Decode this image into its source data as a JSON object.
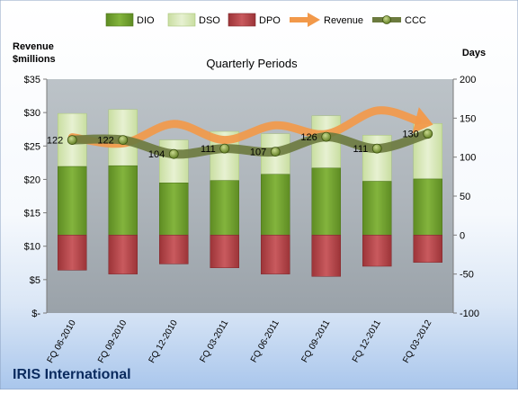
{
  "chart_data": {
    "type": "bar",
    "title": "Quarterly Periods",
    "company": "IRIS International",
    "left_axis_label_line1": "Revenue",
    "left_axis_label_line2": "$millions",
    "right_axis_label": "Days",
    "left_ylim": [
      0,
      35
    ],
    "right_ylim": [
      -100,
      200
    ],
    "left_ticks": [
      {
        "value": 0,
        "label": "$-"
      },
      {
        "value": 5,
        "label": "$5"
      },
      {
        "value": 10,
        "label": "$10"
      },
      {
        "value": 15,
        "label": "$15"
      },
      {
        "value": 20,
        "label": "$20"
      },
      {
        "value": 25,
        "label": "$25"
      },
      {
        "value": 30,
        "label": "$30"
      },
      {
        "value": 35,
        "label": "$35"
      }
    ],
    "right_ticks": [
      {
        "value": -100,
        "label": "-100"
      },
      {
        "value": -50,
        "label": "-50"
      },
      {
        "value": 0,
        "label": "0"
      },
      {
        "value": 50,
        "label": "50"
      },
      {
        "value": 100,
        "label": "100"
      },
      {
        "value": 150,
        "label": "150"
      },
      {
        "value": 200,
        "label": "200"
      }
    ],
    "categories": [
      "FQ 06-2010",
      "FQ 09-2010",
      "FQ 12-2010",
      "FQ 03-2011",
      "FQ 06-2011",
      "FQ 09-2011",
      "FQ 12-2011",
      "FQ 03-2012"
    ],
    "legend": [
      "DIO",
      "DSO",
      "DPO",
      "Revenue",
      "CCC"
    ],
    "series": [
      {
        "name": "DIO",
        "axis": "days",
        "values": [
          88,
          89,
          67,
          70,
          78,
          86,
          69,
          72
        ],
        "color": "#6a9a2a"
      },
      {
        "name": "DSO",
        "axis": "days",
        "values": [
          68,
          72,
          55,
          63,
          52,
          67,
          59,
          71
        ],
        "color": "#d6e8b4"
      },
      {
        "name": "DPO",
        "axis": "days",
        "values": [
          -45,
          -50,
          -37,
          -42,
          -50,
          -53,
          -40,
          -35
        ],
        "color": "#b5474c"
      },
      {
        "name": "Revenue",
        "axis": "revenue",
        "values": [
          26.3,
          25.4,
          28.3,
          25.9,
          28.1,
          26.8,
          30.3,
          28.4
        ],
        "color": "#f2994a"
      },
      {
        "name": "CCC",
        "axis": "days",
        "values": [
          122,
          122,
          104,
          111,
          107,
          126,
          111,
          130
        ],
        "color": "#6b7a3e"
      }
    ],
    "ccc_labels": [
      "122",
      "122",
      "104",
      "111",
      "107",
      "126",
      "111",
      "130"
    ],
    "grid": false,
    "legend_position": "top"
  }
}
